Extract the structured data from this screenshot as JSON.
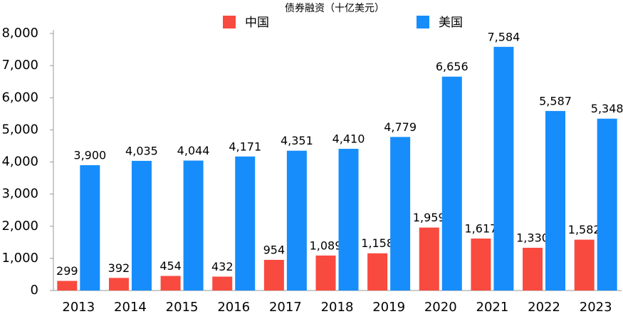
{
  "chart_data": {
    "type": "bar",
    "title": "债券融资（十亿美元）",
    "categories": [
      "2013",
      "2014",
      "2015",
      "2016",
      "2017",
      "2018",
      "2019",
      "2020",
      "2021",
      "2022",
      "2023"
    ],
    "series": [
      {
        "name": "中国",
        "color": "#f94a3f",
        "values": [
          299,
          392,
          454,
          432,
          954,
          1089,
          1158,
          1959,
          1617,
          1330,
          1582
        ],
        "value_labels": [
          "299",
          "392",
          "454",
          "432",
          "954",
          "1,089",
          "1,158",
          "1,959",
          "1,617",
          "1,330",
          "1,582"
        ]
      },
      {
        "name": "美国",
        "color": "#168dfb",
        "values": [
          3900,
          4035,
          4044,
          4171,
          4351,
          4410,
          4779,
          6656,
          7584,
          5587,
          5348
        ],
        "value_labels": [
          "3,900",
          "4,035",
          "4,044",
          "4,171",
          "4,351",
          "4,410",
          "4,779",
          "6,656",
          "7,584",
          "5,587",
          "5,348"
        ]
      }
    ],
    "ylim": [
      0,
      8000
    ],
    "yticks": [
      0,
      {
        "value": 1000,
        "label": "1,000"
      },
      {
        "value": 2000,
        "label": "2,000"
      },
      {
        "value": 3000,
        "label": "3,000"
      },
      {
        "value": 4000,
        "label": "4,000"
      },
      {
        "value": 5000,
        "label": "5,000"
      },
      {
        "value": 6000,
        "label": "6,000"
      },
      {
        "value": 7000,
        "label": "7,000"
      },
      {
        "value": 8000,
        "label": "8,000"
      }
    ],
    "grid": false,
    "legend": "top"
  }
}
